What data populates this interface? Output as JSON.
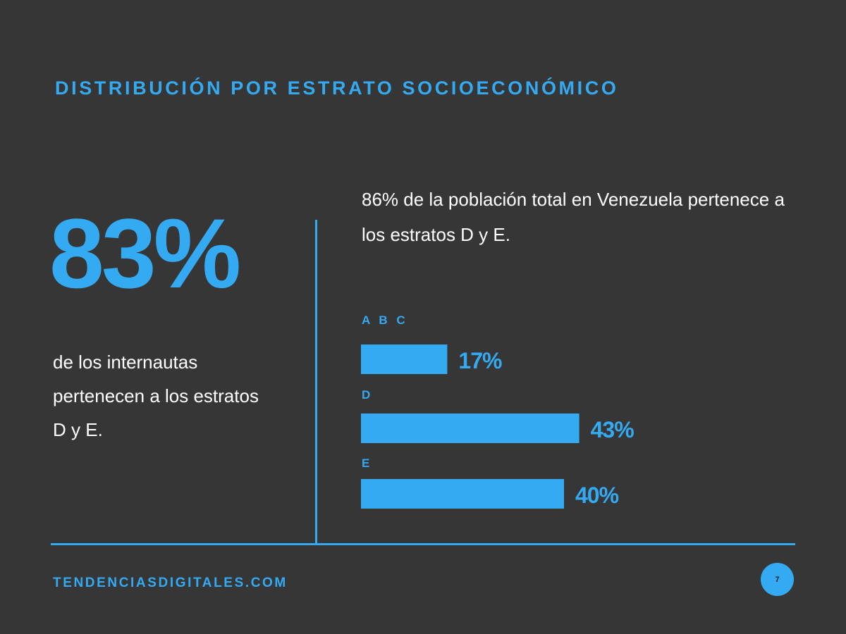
{
  "title": "DISTRIBUCIÓN POR ESTRATO SOCIOECONÓMICO",
  "big_stat": {
    "value": "83%",
    "description": "de los internautas pertenecen a los estratos D y E."
  },
  "note": "86% de la población total en Venezuela pertenece a los estratos D y E.",
  "chart_data": {
    "type": "bar",
    "orientation": "horizontal",
    "categories": [
      "A B C",
      "D",
      "E"
    ],
    "values": [
      17,
      43,
      40
    ],
    "value_labels": [
      "17%",
      "43%",
      "40%"
    ],
    "unit": "%",
    "xlim": [
      0,
      100
    ],
    "grid": false,
    "bar_color": "#34aaf2"
  },
  "footer": "TENDENCIASDIGITALES.COM",
  "page_number": "7",
  "colors": {
    "background": "#363636",
    "accent": "#34aaf2",
    "text": "#ffffff"
  }
}
